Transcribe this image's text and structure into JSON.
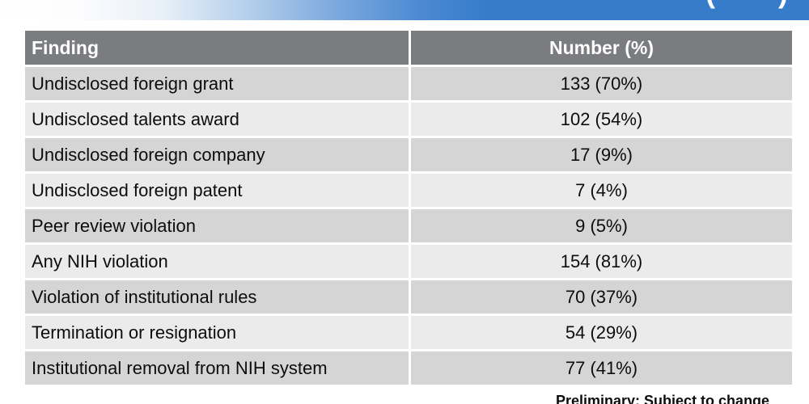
{
  "top_bar": {
    "blue": "#377ccb",
    "cutoff_left_glyph": "(",
    "cutoff_right_glyph": ")"
  },
  "table": {
    "columns": [
      {
        "label": "Finding"
      },
      {
        "label": "Number (%)"
      }
    ],
    "rows": [
      {
        "finding": "Undisclosed foreign grant",
        "number": "133 (70%)"
      },
      {
        "finding": "Undisclosed talents award",
        "number": "102 (54%)"
      },
      {
        "finding": "Undisclosed foreign company",
        "number": "17 (9%)"
      },
      {
        "finding": "Undisclosed foreign patent",
        "number": "7 (4%)"
      },
      {
        "finding": "Peer review violation",
        "number": "9 (5%)"
      },
      {
        "finding": "Any NIH violation",
        "number": "154 (81%)"
      },
      {
        "finding": "Violation of institutional rules",
        "number": "70 (37%)"
      },
      {
        "finding": "Termination or resignation",
        "number": "54 (29%)"
      },
      {
        "finding": "Institutional removal from NIH system",
        "number": "77 (41%)"
      }
    ],
    "colors": {
      "header_bg": "#7a7c7f",
      "header_text": "#ffffff",
      "row_dark": "#d5d5d5",
      "row_light": "#ebebeb",
      "body_text": "#0d0d0d"
    }
  },
  "footer": {
    "note": "Preliminary: Subject to change"
  }
}
